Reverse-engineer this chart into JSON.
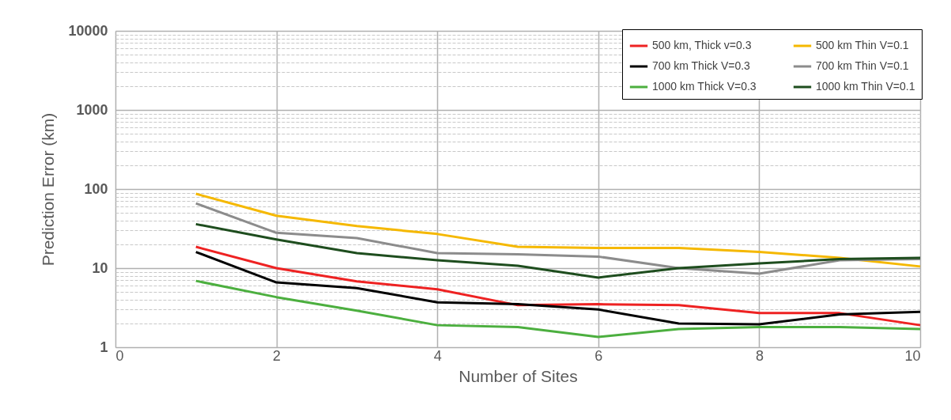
{
  "chart_data": {
    "type": "line",
    "xlabel": "Number of Sites",
    "ylabel": "Prediction Error (km)",
    "x": [
      1,
      2,
      3,
      4,
      5,
      6,
      7,
      8,
      9,
      10
    ],
    "xlim": [
      0,
      10
    ],
    "xticks": [
      0,
      2,
      4,
      6,
      8,
      10
    ],
    "ylim": [
      1,
      10000
    ],
    "yticks": [
      1,
      10,
      100,
      1000,
      10000
    ],
    "log": "y",
    "grid": true,
    "legend": "top right",
    "marker": "none",
    "line_style": "solid",
    "series": [
      {
        "name": "500 km, Thick v=0.3",
        "color": "#ee2222",
        "values": [
          18.6,
          10,
          6.8,
          5.4,
          3.4,
          3.5,
          3.4,
          2.7,
          2.7,
          1.9
        ]
      },
      {
        "name": "700 km Thick V=0.3",
        "color": "#000000",
        "values": [
          16,
          6.6,
          5.6,
          3.7,
          3.5,
          3.0,
          2.0,
          1.95,
          2.6,
          2.8
        ]
      },
      {
        "name": "1000 km Thick V=0.3",
        "color": "#4caf3f",
        "values": [
          6.9,
          4.3,
          2.9,
          1.9,
          1.8,
          1.35,
          1.7,
          1.8,
          1.8,
          1.7
        ]
      },
      {
        "name": "500 km Thin V=0.1",
        "color": "#f5b800",
        "values": [
          87,
          46,
          34,
          27,
          18.6,
          18,
          18,
          16,
          13.5,
          10.5
        ]
      },
      {
        "name": "700 km Thin V=0.1",
        "color": "#8c8c8c",
        "values": [
          66,
          28,
          24,
          15.5,
          15,
          14,
          10,
          8.5,
          12.6,
          13
        ]
      },
      {
        "name": "1000 km Thin V=0.1",
        "color": "#1e4d1e",
        "values": [
          36,
          23,
          15.5,
          12.6,
          10.7,
          7.6,
          10,
          11.5,
          13,
          13.5
        ]
      }
    ]
  }
}
